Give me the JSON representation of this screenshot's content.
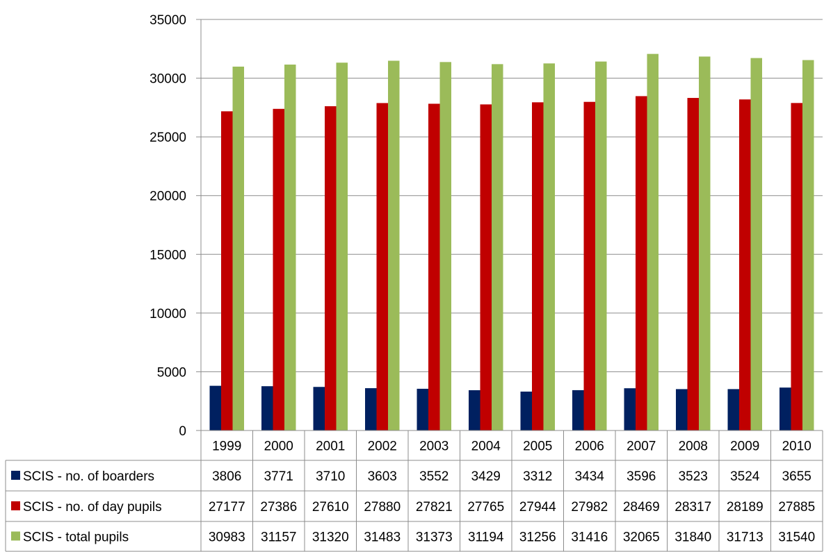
{
  "chart_data": {
    "type": "bar",
    "categories": [
      "1999",
      "2000",
      "2001",
      "2002",
      "2003",
      "2004",
      "2005",
      "2006",
      "2007",
      "2008",
      "2009",
      "2010"
    ],
    "series": [
      {
        "name": "SCIS - no. of boarders",
        "color": "#002060",
        "values": [
          3806,
          3771,
          3710,
          3603,
          3552,
          3429,
          3312,
          3434,
          3596,
          3523,
          3524,
          3655
        ]
      },
      {
        "name": "SCIS - no. of day pupils",
        "color": "#C00000",
        "values": [
          27177,
          27386,
          27610,
          27880,
          27821,
          27765,
          27944,
          27982,
          28469,
          28317,
          28189,
          27885
        ]
      },
      {
        "name": "SCIS - total pupils",
        "color": "#9BBB59",
        "values": [
          30983,
          31157,
          31320,
          31483,
          31373,
          31194,
          31256,
          31416,
          32065,
          31840,
          31713,
          31540
        ]
      }
    ],
    "ylim": [
      0,
      35000
    ],
    "yticks": [
      0,
      5000,
      10000,
      15000,
      20000,
      25000,
      30000,
      35000
    ],
    "grid": true,
    "data_table": true
  }
}
